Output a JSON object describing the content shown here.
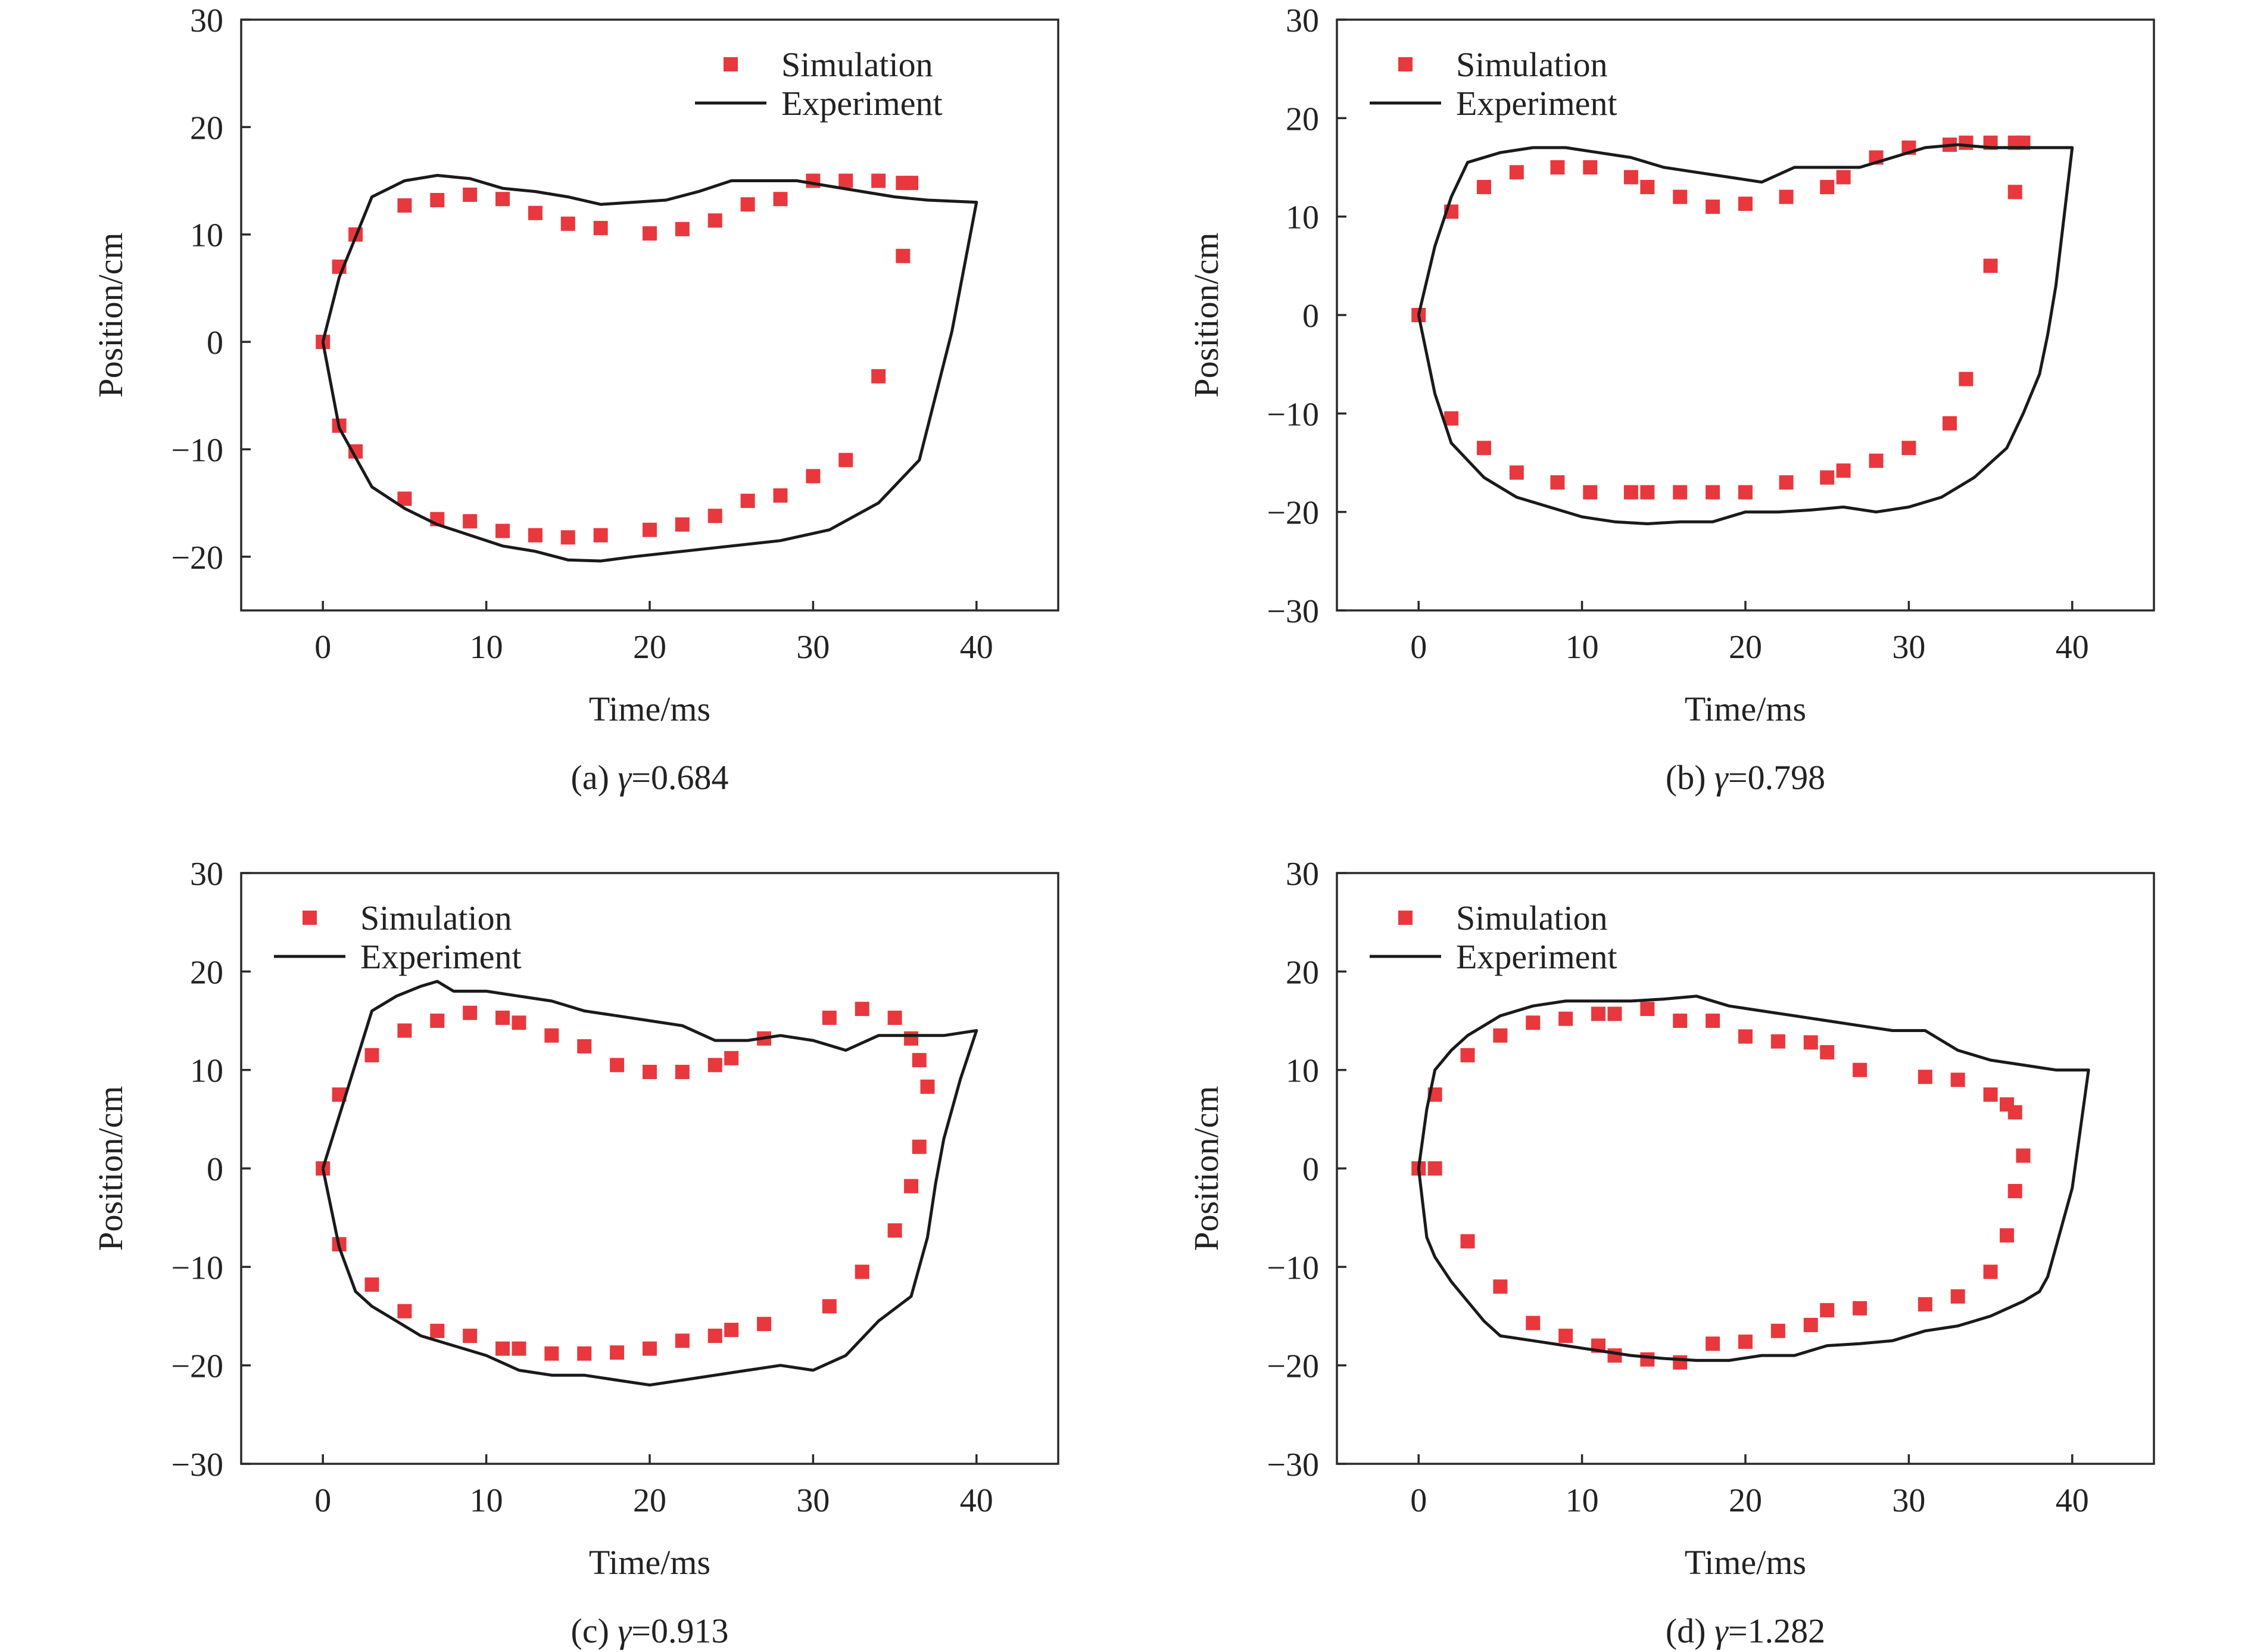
{
  "colors": {
    "simulation": "#e8383d",
    "experiment": "#1a1a1a",
    "axis": "#2a2a2a"
  },
  "chart_data": [
    {
      "type": "scatter",
      "caption_prefix": "(a) ",
      "caption_symbol": "γ",
      "caption_value": "=0.684",
      "xlabel": "Time/ms",
      "ylabel": "Position/cm",
      "xlim": [
        -5,
        45
      ],
      "ylim": [
        -25,
        30
      ],
      "xticks": [
        0,
        10,
        20,
        30,
        40
      ],
      "yticks": [
        -20,
        -10,
        0,
        10,
        20,
        30
      ],
      "legend": {
        "position": "top-right",
        "entries": [
          "Simulation",
          "Experiment"
        ]
      },
      "series": [
        {
          "name": "Simulation",
          "kind": "points",
          "x": [
            0,
            1,
            2,
            5,
            7,
            9,
            11,
            13,
            15,
            17,
            20,
            22,
            24,
            26,
            28,
            30,
            32,
            34,
            35.5,
            36,
            35.5,
            34,
            32,
            30,
            28,
            26,
            24,
            22,
            20,
            17,
            15,
            13,
            11,
            9,
            7,
            5,
            2,
            1
          ],
          "y": [
            0,
            7,
            10,
            12.7,
            13.2,
            13.7,
            13.3,
            12,
            11,
            10.6,
            10.1,
            10.5,
            11.3,
            12.8,
            13.3,
            15,
            15,
            15,
            14.8,
            14.8,
            8,
            -3.2,
            -11,
            -12.5,
            -14.3,
            -14.8,
            -16.2,
            -17,
            -17.5,
            -18,
            -18.2,
            -18,
            -17.6,
            -16.7,
            -16.5,
            -14.6,
            -10.2,
            -7.8
          ]
        },
        {
          "name": "Experiment",
          "kind": "line",
          "x": [
            0,
            1,
            3,
            5,
            7,
            9,
            11,
            13,
            15,
            17,
            19,
            21,
            23,
            25,
            27,
            29,
            31,
            33,
            35,
            37,
            40,
            38.5,
            36.5,
            34,
            31,
            28,
            25,
            22,
            19,
            17,
            15,
            13,
            11,
            9,
            7,
            5,
            3,
            1,
            0
          ],
          "y": [
            0,
            6,
            13.5,
            15,
            15.5,
            15.2,
            14.3,
            14,
            13.5,
            12.8,
            13,
            13.2,
            14,
            15,
            15,
            15,
            14.5,
            14,
            13.5,
            13.2,
            13,
            1,
            -11,
            -15,
            -17.5,
            -18.5,
            -19,
            -19.5,
            -20,
            -20.4,
            -20.3,
            -19.5,
            -19,
            -18,
            -17,
            -15.5,
            -13.5,
            -8,
            0
          ]
        }
      ]
    },
    {
      "type": "scatter",
      "caption_prefix": "(b) ",
      "caption_symbol": "γ",
      "caption_value": "=0.798",
      "xlabel": "Time/ms",
      "ylabel": "Position/cm",
      "xlim": [
        -5,
        45
      ],
      "ylim": [
        -30,
        30
      ],
      "xticks": [
        0,
        10,
        20,
        30,
        40
      ],
      "yticks": [
        -30,
        -20,
        -10,
        0,
        10,
        20,
        30
      ],
      "legend": {
        "position": "top-left",
        "entries": [
          "Simulation",
          "Experiment"
        ]
      },
      "series": [
        {
          "name": "Simulation",
          "kind": "points",
          "x": [
            0,
            2,
            4,
            6,
            8.5,
            10.5,
            13,
            14,
            16,
            18,
            20,
            22.5,
            25,
            26,
            28,
            30,
            32.5,
            33.5,
            35,
            36.5,
            37,
            36.5,
            35,
            33.5,
            32.5,
            30,
            28,
            26,
            25,
            22.5,
            20,
            18,
            16,
            14,
            13,
            10.5,
            8.5,
            6,
            4,
            2
          ],
          "y": [
            0,
            10.5,
            13,
            14.5,
            15,
            15,
            14,
            13,
            12,
            11,
            11.3,
            12,
            13,
            14,
            16,
            17,
            17.3,
            17.5,
            17.5,
            17.5,
            17.5,
            12.5,
            5,
            -6.5,
            -11,
            -13.5,
            -14.8,
            -15.8,
            -16.5,
            -17,
            -18,
            -18,
            -18,
            -18,
            -18,
            -18,
            -17,
            -16,
            -13.5,
            -10.5
          ]
        },
        {
          "name": "Experiment",
          "kind": "line",
          "x": [
            0,
            1,
            2,
            3,
            5,
            7,
            9,
            11,
            13,
            15,
            17,
            19,
            21,
            23,
            25,
            27,
            29,
            31,
            33,
            35,
            37,
            40,
            39.5,
            39,
            38.5,
            38,
            37,
            36,
            34,
            32,
            30,
            28,
            26,
            24,
            22,
            20,
            18,
            16,
            14,
            12,
            10,
            8,
            6,
            4,
            2,
            1,
            0
          ],
          "y": [
            0,
            7,
            12,
            15.5,
            16.5,
            17,
            17,
            16.5,
            16,
            15,
            14.5,
            14,
            13.5,
            15,
            15,
            15,
            16,
            17,
            17.3,
            17,
            17,
            17,
            10,
            3,
            -2,
            -6,
            -10,
            -13.5,
            -16.5,
            -18.5,
            -19.5,
            -20,
            -19.5,
            -19.8,
            -20,
            -20,
            -21,
            -21,
            -21.2,
            -21,
            -20.5,
            -19.5,
            -18.5,
            -16.5,
            -13,
            -8,
            0
          ]
        }
      ]
    },
    {
      "type": "scatter",
      "caption_prefix": "(c) ",
      "caption_symbol": "γ",
      "caption_value": "=0.913",
      "xlabel": "Time/ms",
      "ylabel": "Position/cm",
      "xlim": [
        -5,
        45
      ],
      "ylim": [
        -30,
        30
      ],
      "xticks": [
        0,
        10,
        20,
        30,
        40
      ],
      "yticks": [
        -30,
        -20,
        -10,
        0,
        10,
        20,
        30
      ],
      "legend": {
        "position": "top-left",
        "entries": [
          "Simulation",
          "Experiment"
        ]
      },
      "series": [
        {
          "name": "Simulation",
          "kind": "points",
          "x": [
            0,
            1,
            3,
            5,
            7,
            9,
            11,
            12,
            14,
            16,
            18,
            20,
            22,
            24,
            25,
            27,
            31,
            33,
            35,
            36,
            36.5,
            37,
            36.5,
            36,
            35,
            33,
            31,
            27,
            25,
            24,
            22,
            20,
            18,
            16,
            14,
            12,
            11,
            9,
            7,
            5,
            3,
            1
          ],
          "y": [
            0,
            7.5,
            11.5,
            14,
            15,
            15.8,
            15.3,
            14.8,
            13.5,
            12.4,
            10.5,
            9.8,
            9.8,
            10.5,
            11.2,
            13.2,
            15.3,
            16.2,
            15.3,
            13.2,
            11,
            8.3,
            2.2,
            -1.8,
            -6.3,
            -10.5,
            -14,
            -15.8,
            -16.4,
            -17,
            -17.5,
            -18.3,
            -18.7,
            -18.8,
            -18.8,
            -18.3,
            -18.3,
            -17,
            -16.5,
            -14.5,
            -11.8,
            -7.7
          ]
        },
        {
          "name": "Experiment",
          "kind": "line",
          "x": [
            0,
            1.5,
            3,
            4.5,
            6,
            7,
            8,
            10,
            12,
            14,
            16,
            18,
            20,
            22,
            24,
            26,
            28,
            30,
            32,
            34,
            36,
            38,
            40,
            39,
            38,
            37.5,
            37,
            36,
            34,
            32,
            30,
            28,
            26,
            24,
            22,
            20,
            18,
            16,
            14,
            12,
            10,
            8,
            6,
            4,
            3,
            2,
            1,
            0
          ],
          "y": [
            0,
            8,
            16,
            17.5,
            18.5,
            19,
            18,
            18,
            17.5,
            17,
            16,
            15.5,
            15,
            14.5,
            13,
            13,
            13.5,
            13,
            12,
            13.5,
            13.5,
            13.5,
            14,
            9,
            3,
            -1.5,
            -7,
            -13,
            -15.5,
            -19,
            -20.5,
            -20,
            -20.5,
            -21,
            -21.5,
            -22,
            -21.5,
            -21,
            -21,
            -20.5,
            -19,
            -18,
            -17,
            -15,
            -14,
            -12.5,
            -8,
            0
          ]
        }
      ]
    },
    {
      "type": "scatter",
      "caption_prefix": "(d) ",
      "caption_symbol": "γ",
      "caption_value": "=1.282",
      "xlabel": "Time/ms",
      "ylabel": "Position/cm",
      "xlim": [
        -5,
        45
      ],
      "ylim": [
        -30,
        30
      ],
      "xticks": [
        0,
        10,
        20,
        30,
        40
      ],
      "yticks": [
        -30,
        -20,
        -10,
        0,
        10,
        20,
        30
      ],
      "legend": {
        "position": "top-left",
        "entries": [
          "Simulation",
          "Experiment"
        ]
      },
      "series": [
        {
          "name": "Simulation",
          "kind": "points",
          "x": [
            0,
            1,
            3,
            5,
            7,
            9,
            11,
            12,
            14,
            16,
            18,
            20,
            22,
            24,
            25,
            27,
            31,
            33,
            35,
            36,
            36.5,
            37,
            36.5,
            36,
            35,
            33,
            31,
            27,
            25,
            24,
            22,
            20,
            18,
            16,
            14,
            12,
            11,
            9,
            7,
            5,
            3,
            1
          ],
          "y": [
            0,
            7.5,
            11.5,
            13.5,
            14.8,
            15.2,
            15.7,
            15.7,
            16.2,
            15,
            15,
            13.4,
            12.9,
            12.8,
            11.8,
            10,
            9.3,
            9,
            7.5,
            6.5,
            5.7,
            1.3,
            -2.3,
            -6.8,
            -10.5,
            -13,
            -13.8,
            -14.2,
            -14.4,
            -15.9,
            -16.5,
            -17.6,
            -17.8,
            -19.7,
            -19.4,
            -19,
            -18,
            -17,
            -15.7,
            -12,
            -7.4,
            0
          ]
        },
        {
          "name": "Experiment",
          "kind": "line",
          "x": [
            0,
            0.5,
            1,
            2,
            3,
            5,
            7,
            9,
            11,
            13,
            15,
            17,
            19,
            21,
            23,
            25,
            27,
            29,
            31,
            33,
            35,
            37,
            39,
            41,
            40.5,
            40,
            39,
            38.5,
            38,
            37,
            35,
            33,
            31,
            29,
            27,
            25,
            23,
            21,
            19,
            17,
            15,
            13,
            11,
            9,
            7,
            5,
            4,
            3,
            2,
            1,
            0.5,
            0
          ],
          "y": [
            0,
            6,
            10,
            12,
            13.5,
            15.5,
            16.5,
            17,
            17,
            17,
            17.2,
            17.5,
            16.5,
            16,
            15.5,
            15,
            14.5,
            14,
            14,
            12,
            11,
            10.5,
            10,
            10,
            4,
            -2,
            -8,
            -11,
            -12.5,
            -13.5,
            -15,
            -16,
            -16.5,
            -17.5,
            -17.8,
            -18,
            -19,
            -19,
            -19.5,
            -19.5,
            -19.3,
            -19,
            -18.5,
            -18,
            -17.5,
            -17,
            -15.5,
            -13.5,
            -11.5,
            -9,
            -7,
            0
          ]
        }
      ]
    }
  ]
}
